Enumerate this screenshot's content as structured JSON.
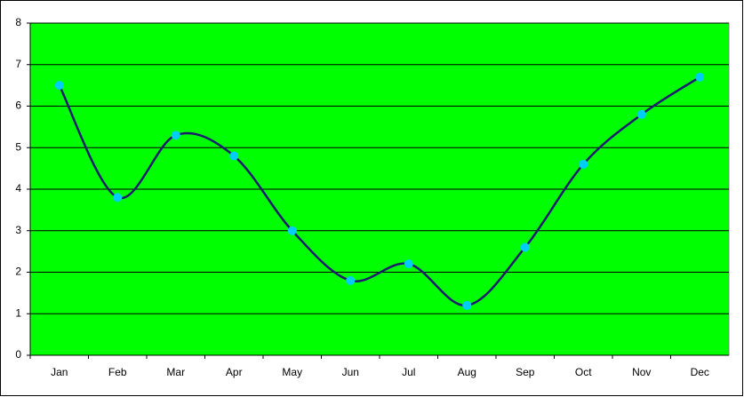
{
  "chart_data": {
    "type": "line",
    "categories": [
      "Jan",
      "Feb",
      "Mar",
      "Apr",
      "May",
      "Jun",
      "Jul",
      "Aug",
      "Sep",
      "Oct",
      "Nov",
      "Dec"
    ],
    "values": [
      6.5,
      3.8,
      5.3,
      4.8,
      3.0,
      1.8,
      2.2,
      1.2,
      2.6,
      4.6,
      5.8,
      6.7
    ],
    "color": "#1c1c6e",
    "marker_color": "#00ccff",
    "plot_background": "#00ff00",
    "ylim": [
      0,
      8
    ],
    "yticks": [
      0,
      1,
      2,
      3,
      4,
      5,
      6,
      7,
      8
    ],
    "grid": true,
    "smooth": true
  }
}
